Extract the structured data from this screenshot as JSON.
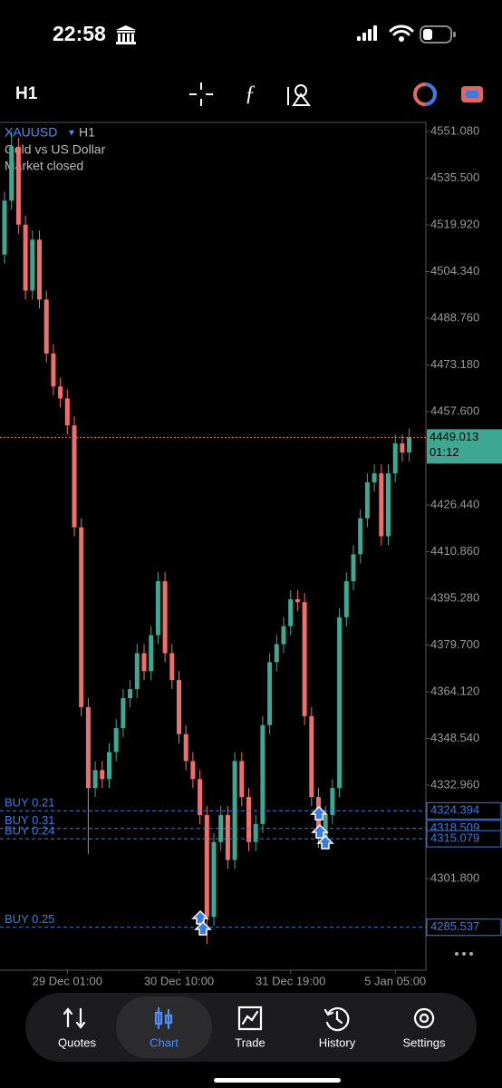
{
  "status_bar": {
    "time": "22:58"
  },
  "toolbar": {
    "timeframe": "H1"
  },
  "chart_data": {
    "type": "candlestick",
    "symbol": "XAUUSD",
    "timeframe": "H1",
    "description": "Gold vs US Dollar",
    "status": "Market closed",
    "categories": [
      null,
      null,
      null,
      null,
      null,
      null,
      null,
      null,
      null,
      "29 Dec 01:00",
      null,
      null,
      null,
      null,
      null,
      null,
      null,
      null,
      null,
      null,
      null,
      null,
      null,
      null,
      null,
      "30 Dec 10:00",
      null,
      null,
      null,
      null,
      null,
      null,
      null,
      null,
      null,
      null,
      null,
      null,
      null,
      null,
      null,
      "31 Dec 19:00",
      null,
      null,
      null,
      null,
      null,
      null,
      null,
      null,
      null,
      null,
      null,
      null,
      null,
      null,
      "5 Jan 05:00",
      null,
      null
    ],
    "open": [
      4510,
      4528,
      4546,
      4520,
      4498,
      4515,
      4495,
      4477,
      4466,
      4462,
      4453,
      4419,
      4359,
      4332,
      4338,
      4335,
      4344,
      4352,
      4362,
      4365,
      4377,
      4371,
      4383,
      4401,
      4377,
      4368,
      4350,
      4341,
      4335,
      4323,
      4289,
      4314,
      4323,
      4308,
      4341,
      4329,
      4314,
      4320,
      4353,
      4374,
      4380,
      4386,
      4395,
      4394,
      4356,
      4329,
      4315,
      4323,
      4332,
      4389,
      4401,
      4410,
      4422,
      4434,
      4437,
      4416,
      4437,
      4447,
      4444
    ],
    "high": [
      4531,
      4551,
      4549,
      4523,
      4518,
      4518,
      4498,
      4480,
      4469,
      4465,
      4456,
      4422,
      4362,
      4341,
      4341,
      4347,
      4355,
      4365,
      4368,
      4380,
      4380,
      4386,
      4404,
      4404,
      4380,
      4371,
      4353,
      4344,
      4338,
      4326,
      4317,
      4326,
      4326,
      4344,
      4344,
      4332,
      4323,
      4356,
      4377,
      4383,
      4389,
      4398,
      4398,
      4397,
      4359,
      4332,
      4326,
      4335,
      4392,
      4404,
      4413,
      4425,
      4437,
      4440,
      4440,
      4440,
      4450,
      4450,
      4452
    ],
    "low": [
      4507,
      4525,
      4517,
      4495,
      4495,
      4492,
      4474,
      4463,
      4459,
      4450,
      4416,
      4356,
      4310,
      4329,
      4332,
      4332,
      4341,
      4349,
      4359,
      4362,
      4368,
      4368,
      4380,
      4374,
      4365,
      4347,
      4338,
      4332,
      4320,
      4280,
      4286,
      4311,
      4305,
      4305,
      4326,
      4311,
      4311,
      4317,
      4350,
      4371,
      4377,
      4383,
      4391,
      4353,
      4326,
      4312,
      4312,
      4320,
      4329,
      4386,
      4398,
      4407,
      4419,
      4431,
      4413,
      4413,
      4434,
      4441,
      4441
    ],
    "close": [
      4528,
      4546,
      4520,
      4498,
      4515,
      4495,
      4477,
      4466,
      4462,
      4453,
      4419,
      4359,
      4332,
      4338,
      4335,
      4344,
      4352,
      4362,
      4365,
      4377,
      4371,
      4383,
      4401,
      4377,
      4368,
      4350,
      4341,
      4335,
      4323,
      4289,
      4314,
      4323,
      4308,
      4341,
      4329,
      4314,
      4320,
      4353,
      4374,
      4380,
      4386,
      4395,
      4394,
      4356,
      4329,
      4315,
      4323,
      4332,
      4389,
      4401,
      4410,
      4422,
      4434,
      4437,
      4416,
      4437,
      4447,
      4444,
      4449
    ],
    "up_color": "#3fa892",
    "down_color": "#ef6f6c",
    "position_color": "#3b7be0",
    "ylim": [
      4271.24,
      4554.11
    ],
    "yticks": [
      {
        "value": 4551.08,
        "label": "4551.080"
      },
      {
        "value": 4535.5,
        "label": "4535.500"
      },
      {
        "value": 4519.92,
        "label": "4519.920"
      },
      {
        "value": 4504.34,
        "label": "4504.340"
      },
      {
        "value": 4488.76,
        "label": "4488.760"
      },
      {
        "value": 4473.18,
        "label": "4473.180"
      },
      {
        "value": 4457.6,
        "label": "4457.600"
      },
      {
        "value": 4426.44,
        "label": "4426.440"
      },
      {
        "value": 4410.86,
        "label": "4410.860"
      },
      {
        "value": 4395.28,
        "label": "4395.280"
      },
      {
        "value": 4379.7,
        "label": "4379.700"
      },
      {
        "value": 4364.12,
        "label": "4364.120"
      },
      {
        "value": 4348.54,
        "label": "4348.540"
      },
      {
        "value": 4332.96,
        "label": "4332.960"
      },
      {
        "value": 4301.8,
        "label": "4301.800"
      }
    ],
    "current_price": 4449.013,
    "countdown": "01:12",
    "positions": [
      {
        "name": "BUY 0.21",
        "price": 4324.394
      },
      {
        "name": "BUY 0.31",
        "price": 4318.509
      },
      {
        "name": "BUY 0.24",
        "price": 4315.079
      },
      {
        "name": "BUY 0.25",
        "price": 4285.537
      }
    ]
  },
  "nav": {
    "items": [
      "Quotes",
      "Chart",
      "Trade",
      "History",
      "Settings"
    ],
    "active": 1
  }
}
